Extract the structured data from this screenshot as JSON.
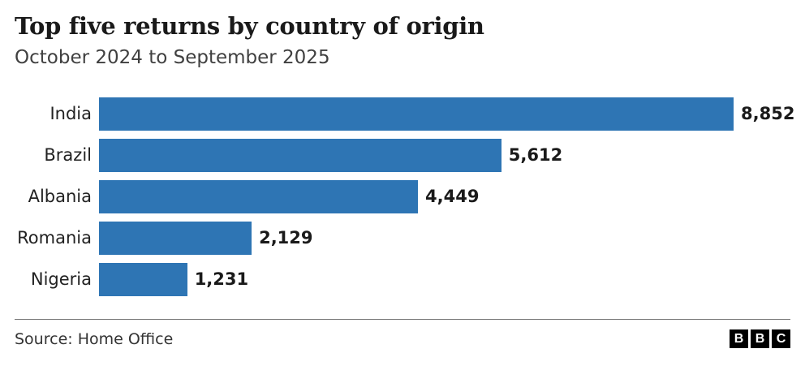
{
  "header": {
    "title": "Top five returns by country of origin",
    "subtitle": "October 2024 to September 2025"
  },
  "chart_data": {
    "type": "bar",
    "orientation": "horizontal",
    "title": "Top five returns by country of origin",
    "subtitle": "October 2024 to September 2025",
    "categories": [
      "India",
      "Brazil",
      "Albania",
      "Romania",
      "Nigeria"
    ],
    "values": [
      8852,
      5612,
      4449,
      2129,
      1231
    ],
    "value_labels": [
      "8,852",
      "5,612",
      "4,449",
      "2,129",
      "1,231"
    ],
    "xlim": [
      0,
      8852
    ],
    "grid": false,
    "legend": false,
    "bar_color": "#2e75b4"
  },
  "footer": {
    "source": "Source: Home Office",
    "logo_letters": [
      "B",
      "B",
      "C"
    ]
  },
  "colors": {
    "bar": "#2e75b4",
    "title_text": "#1a1a1a",
    "subtitle_text": "#404040",
    "category_text": "#222222",
    "value_text": "#1a1a1a",
    "source_text": "#333333",
    "divider": "#757575",
    "background": "#ffffff",
    "logo_bg": "#000000",
    "logo_text": "#ffffff"
  }
}
